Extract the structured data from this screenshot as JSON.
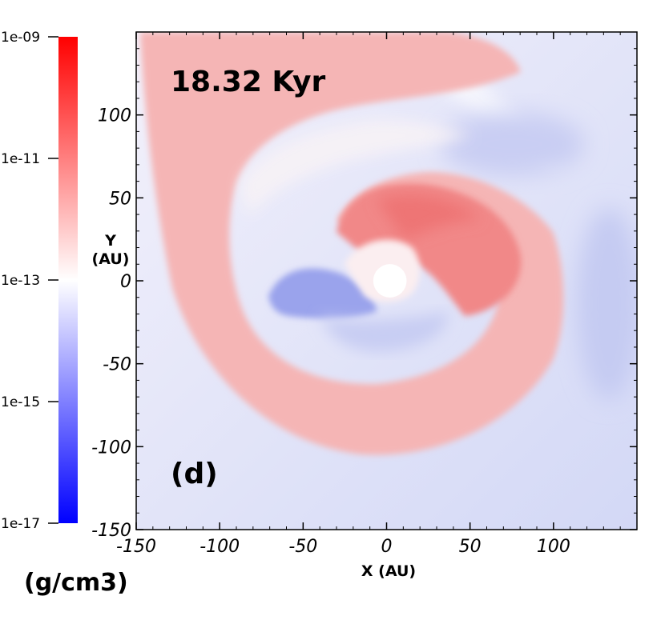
{
  "chart_data": {
    "type": "heatmap",
    "title": "18.32 Kyr",
    "panel_label": "(d)",
    "xlabel": "X (AU)",
    "ylabel_line1": "Y",
    "ylabel_line2": "(AU)",
    "xlim": [
      -150,
      150
    ],
    "ylim": [
      -150,
      150
    ],
    "x_ticks": [
      -150,
      -100,
      -50,
      0,
      50,
      100
    ],
    "y_ticks": [
      -150,
      -100,
      -50,
      0,
      50,
      100
    ],
    "x_tick_labels": [
      "-150",
      "-100",
      "-50",
      "0",
      "50",
      "100"
    ],
    "y_tick_labels": [
      "-150",
      "-100",
      "-50",
      "0",
      "50",
      "100"
    ],
    "colorbar": {
      "quantity_unit": "(g/cm3)",
      "scale": "log",
      "ticks": [
        "1e-09",
        "1e-11",
        "1e-13",
        "1e-15",
        "1e-17"
      ],
      "tick_exponents": [
        -9,
        -11,
        -13,
        -15,
        -17
      ],
      "range_exponent": [
        -17,
        -9
      ],
      "colormap": [
        "#0000ff",
        "#ffffff",
        "#ff0000"
      ]
    },
    "sink": {
      "x": 2,
      "y": 0,
      "radius": 10
    }
  }
}
